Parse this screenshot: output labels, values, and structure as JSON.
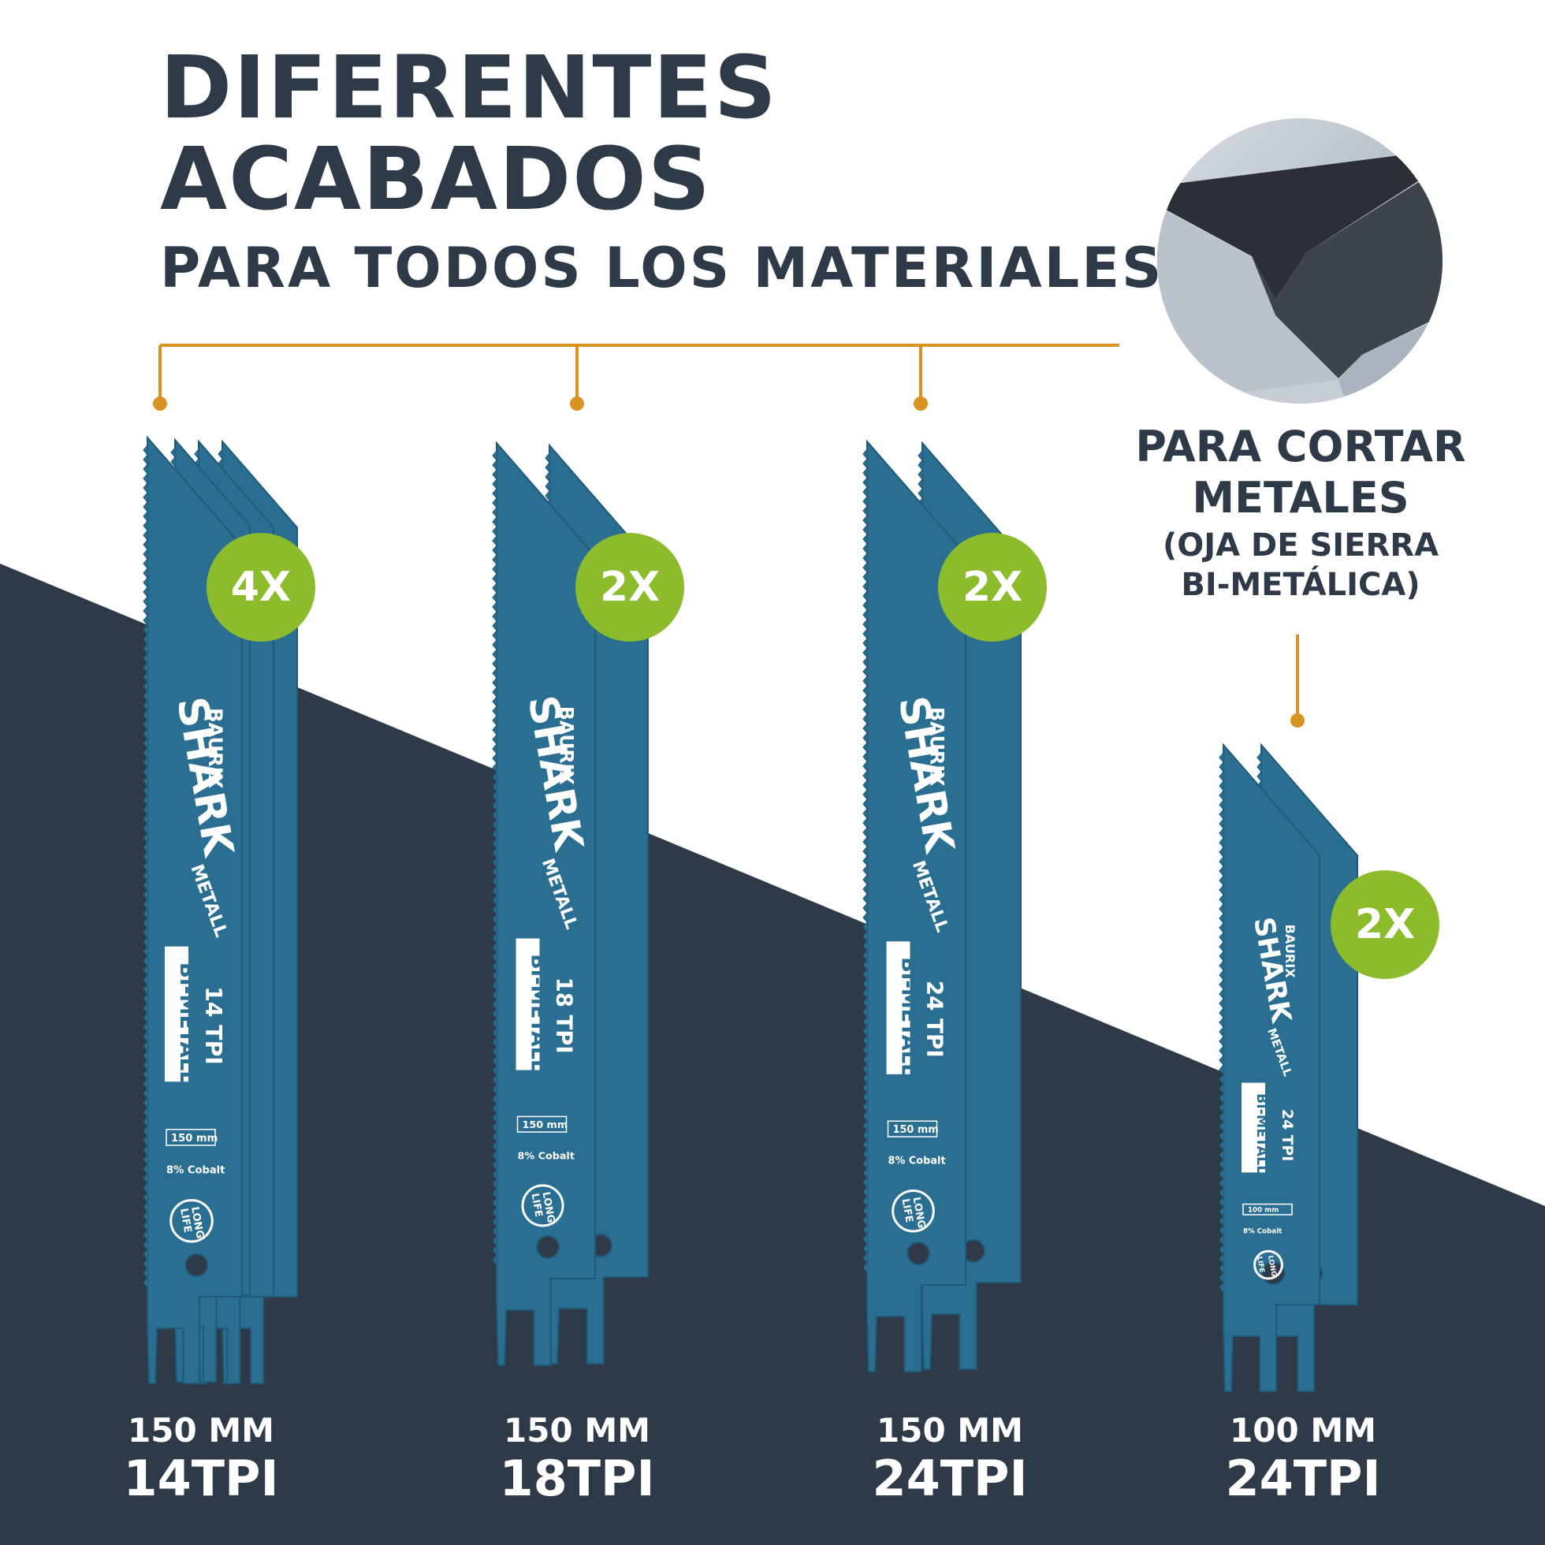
{
  "header": {
    "line1": "DIFERENTES",
    "line2": "ACABADOS",
    "line3": "PARA TODOS LOS MATERIALES"
  },
  "side": {
    "line1": "PARA CORTAR",
    "line2": "METALES",
    "line3": "(OJA DE SIERRA",
    "line4": "BI-METÁLICA)",
    "image_icon": "metal-beam-photo"
  },
  "colors": {
    "dark_background": "#2f3a49",
    "accent_orange": "#d99323",
    "badge_green": "#8cbb2b",
    "blade_blue": "#2a6f92"
  },
  "blade_print": {
    "brand": "BAURIX",
    "product": "SHARK",
    "material": "METALL",
    "type": "BI-METALL",
    "cobalt": "8% Cobalt",
    "life1": "LONG",
    "life2": "LIFE"
  },
  "products": [
    {
      "quantity": "4X",
      "length": "150 MM",
      "tpi": "14TPI",
      "blade_tpi": "14 TPI",
      "blade_length": "150 mm"
    },
    {
      "quantity": "2X",
      "length": "150 MM",
      "tpi": "18TPI",
      "blade_tpi": "18 TPI",
      "blade_length": "150 mm"
    },
    {
      "quantity": "2X",
      "length": "150 MM",
      "tpi": "24TPI",
      "blade_tpi": "24 TPI",
      "blade_length": "150 mm"
    },
    {
      "quantity": "2X",
      "length": "100 MM",
      "tpi": "24TPI",
      "blade_tpi": "24 TPI",
      "blade_length": "100 mm"
    }
  ]
}
